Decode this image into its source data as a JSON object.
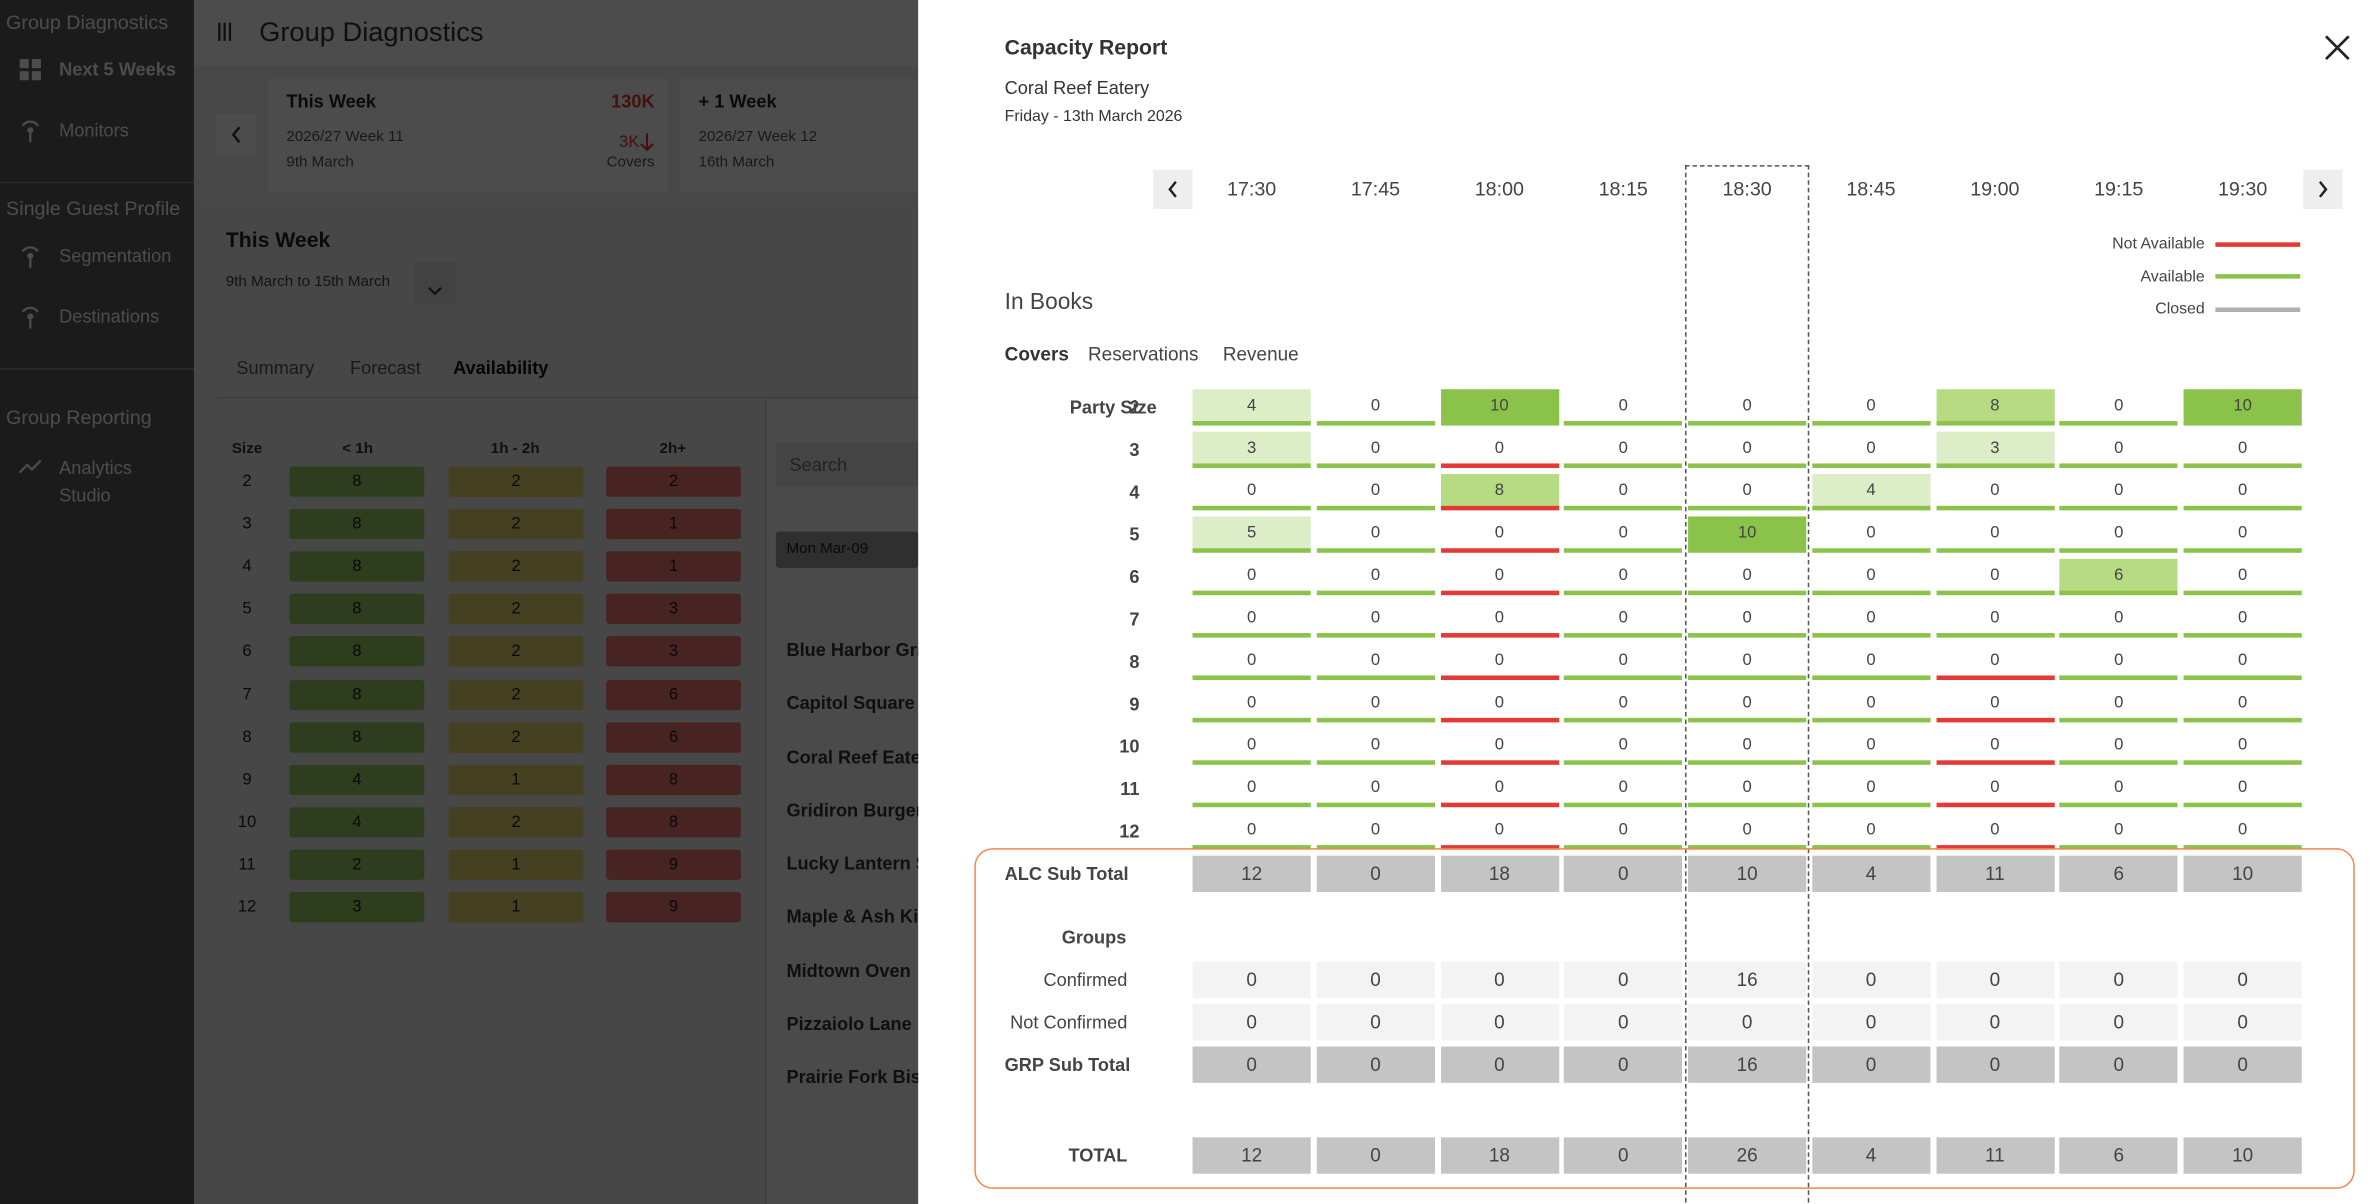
{
  "sidebar": {
    "title": "Group Diagnostics",
    "items": [
      "Next 5 Weeks",
      "Monitors"
    ],
    "sections": [
      {
        "title": "Single Guest Profile",
        "items": [
          "Segmentation",
          "Destinations"
        ]
      },
      {
        "title": "Group Reporting",
        "items": [
          "Analytics Studio"
        ]
      }
    ]
  },
  "header": {
    "title": "Group Diagnostics"
  },
  "week_cards": [
    {
      "title": "This Week",
      "amount": "130K",
      "week": "2026/27 Week 11",
      "date": "9th March",
      "covers": "3K",
      "covers_label": "Covers"
    },
    {
      "title": "+ 1 Week",
      "week": "2026/27 Week 12",
      "date": "16th March"
    }
  ],
  "section": {
    "title": "This Week",
    "range": "9th March to 15th March",
    "tabs": [
      "Summary",
      "Forecast",
      "Availability"
    ],
    "active_tab": 2
  },
  "availability": {
    "columns": [
      "Size",
      "< 1h",
      "1h - 2h",
      "2h+"
    ],
    "colors": [
      "#9ccc65",
      "#e8d56e",
      "#ef7a72"
    ],
    "rows": [
      [
        2,
        8,
        2,
        2
      ],
      [
        3,
        8,
        2,
        1
      ],
      [
        4,
        8,
        2,
        1
      ],
      [
        5,
        8,
        2,
        3
      ],
      [
        6,
        8,
        2,
        3
      ],
      [
        7,
        8,
        2,
        6
      ],
      [
        8,
        8,
        2,
        6
      ],
      [
        9,
        4,
        1,
        8
      ],
      [
        10,
        4,
        2,
        8
      ],
      [
        11,
        2,
        1,
        9
      ],
      [
        12,
        3,
        1,
        9
      ]
    ]
  },
  "search_placeholder": "Search",
  "date_chip": "Mon Mar-09",
  "restaurants": [
    "Blue Harbor Gri",
    "Capitol Square",
    "Coral Reef Eate",
    "Gridiron Burger",
    "Lucky Lantern S",
    "Maple & Ash Kit",
    "Midtown Oven",
    "Pizzaiolo Lane",
    "Prairie Fork Bist"
  ],
  "report": {
    "title": "Capacity Report",
    "venue": "Coral Reef Eatery",
    "date": "Friday - 13th March 2026",
    "times": [
      "17:30",
      "17:45",
      "18:00",
      "18:15",
      "18:30",
      "18:45",
      "19:00",
      "19:15",
      "19:30"
    ],
    "selected_time": 4,
    "legend": [
      {
        "label": "Not Available",
        "color": "#e53935"
      },
      {
        "label": "Available",
        "color": "#8bc34a"
      },
      {
        "label": "Closed",
        "color": "#b0b0b0"
      }
    ],
    "section_title": "In Books",
    "tabs": [
      "Covers",
      "Reservations",
      "Revenue"
    ],
    "active_tab": 0,
    "party_size_label": "Party Size",
    "shades": [
      "transparent",
      "#dcedc8",
      "#b7db82",
      "#8bc34a"
    ],
    "party_rows": [
      {
        "size": 2,
        "values": [
          4,
          0,
          10,
          0,
          0,
          0,
          8,
          0,
          10
        ],
        "shade": [
          1,
          0,
          3,
          0,
          0,
          0,
          2,
          0,
          3
        ],
        "status": [
          1,
          1,
          1,
          1,
          1,
          1,
          1,
          1,
          1
        ]
      },
      {
        "size": 3,
        "values": [
          3,
          0,
          0,
          0,
          0,
          0,
          3,
          0,
          0
        ],
        "shade": [
          1,
          0,
          0,
          0,
          0,
          0,
          1,
          0,
          0
        ],
        "status": [
          1,
          1,
          0,
          1,
          1,
          1,
          1,
          1,
          1
        ]
      },
      {
        "size": 4,
        "values": [
          0,
          0,
          8,
          0,
          0,
          4,
          0,
          0,
          0
        ],
        "shade": [
          0,
          0,
          2,
          0,
          0,
          1,
          0,
          0,
          0
        ],
        "status": [
          1,
          1,
          0,
          1,
          1,
          1,
          1,
          1,
          1
        ]
      },
      {
        "size": 5,
        "values": [
          5,
          0,
          0,
          0,
          10,
          0,
          0,
          0,
          0
        ],
        "shade": [
          1,
          0,
          0,
          0,
          3,
          0,
          0,
          0,
          0
        ],
        "status": [
          1,
          1,
          0,
          1,
          1,
          1,
          1,
          1,
          1
        ]
      },
      {
        "size": 6,
        "values": [
          0,
          0,
          0,
          0,
          0,
          0,
          0,
          6,
          0
        ],
        "shade": [
          0,
          0,
          0,
          0,
          0,
          0,
          0,
          2,
          0
        ],
        "status": [
          1,
          1,
          0,
          1,
          1,
          1,
          1,
          1,
          1
        ]
      },
      {
        "size": 7,
        "values": [
          0,
          0,
          0,
          0,
          0,
          0,
          0,
          0,
          0
        ],
        "shade": [
          0,
          0,
          0,
          0,
          0,
          0,
          0,
          0,
          0
        ],
        "status": [
          1,
          1,
          0,
          1,
          1,
          1,
          1,
          1,
          1
        ]
      },
      {
        "size": 8,
        "values": [
          0,
          0,
          0,
          0,
          0,
          0,
          0,
          0,
          0
        ],
        "shade": [
          0,
          0,
          0,
          0,
          0,
          0,
          0,
          0,
          0
        ],
        "status": [
          1,
          1,
          0,
          1,
          1,
          1,
          0,
          1,
          1
        ]
      },
      {
        "size": 9,
        "values": [
          0,
          0,
          0,
          0,
          0,
          0,
          0,
          0,
          0
        ],
        "shade": [
          0,
          0,
          0,
          0,
          0,
          0,
          0,
          0,
          0
        ],
        "status": [
          1,
          1,
          0,
          1,
          1,
          1,
          0,
          1,
          1
        ]
      },
      {
        "size": 10,
        "values": [
          0,
          0,
          0,
          0,
          0,
          0,
          0,
          0,
          0
        ],
        "shade": [
          0,
          0,
          0,
          0,
          0,
          0,
          0,
          0,
          0
        ],
        "status": [
          1,
          1,
          0,
          1,
          1,
          1,
          0,
          1,
          1
        ]
      },
      {
        "size": 11,
        "values": [
          0,
          0,
          0,
          0,
          0,
          0,
          0,
          0,
          0
        ],
        "shade": [
          0,
          0,
          0,
          0,
          0,
          0,
          0,
          0,
          0
        ],
        "status": [
          1,
          1,
          0,
          1,
          1,
          1,
          0,
          1,
          1
        ]
      },
      {
        "size": 12,
        "values": [
          0,
          0,
          0,
          0,
          0,
          0,
          0,
          0,
          0
        ],
        "shade": [
          0,
          0,
          0,
          0,
          0,
          0,
          0,
          0,
          0
        ],
        "status": [
          1,
          1,
          0,
          1,
          1,
          1,
          0,
          1,
          1
        ]
      }
    ],
    "alc_label": "ALC Sub Total",
    "alc": [
      12,
      0,
      18,
      0,
      10,
      4,
      11,
      6,
      10
    ],
    "groups_label": "Groups",
    "confirmed_label": "Confirmed",
    "confirmed": [
      0,
      0,
      0,
      0,
      16,
      0,
      0,
      0,
      0
    ],
    "not_confirmed_label": "Not Confirmed",
    "not_confirmed": [
      0,
      0,
      0,
      0,
      0,
      0,
      0,
      0,
      0
    ],
    "grp_label": "GRP Sub Total",
    "grp": [
      0,
      0,
      0,
      0,
      16,
      0,
      0,
      0,
      0
    ],
    "total_label": "TOTAL",
    "total": [
      12,
      0,
      18,
      0,
      26,
      4,
      11,
      6,
      10
    ]
  }
}
